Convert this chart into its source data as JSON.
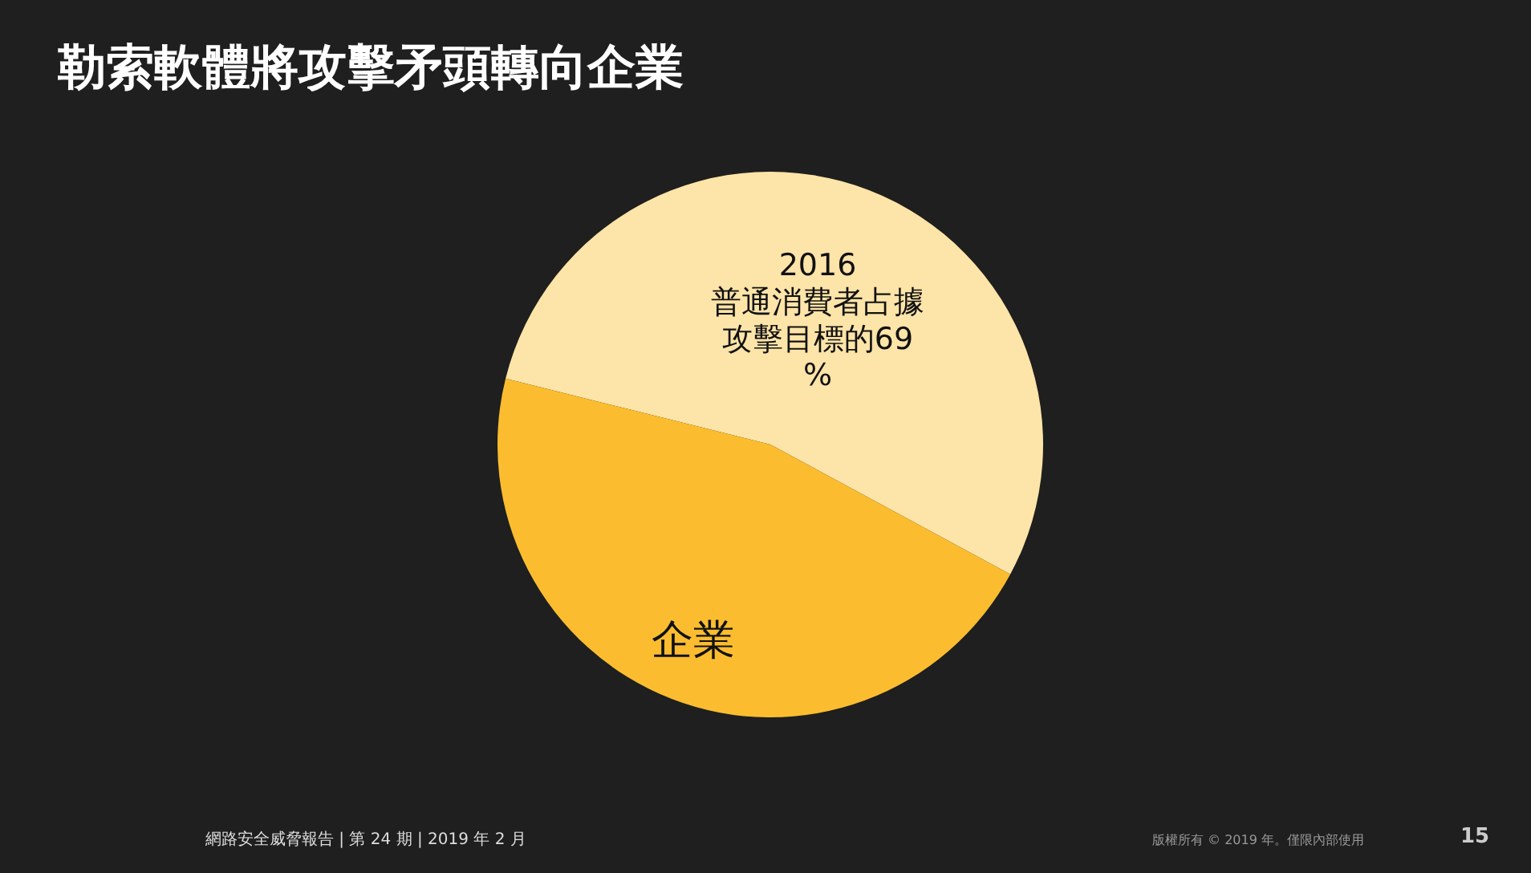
{
  "chart_data": {
    "type": "pie",
    "title": "勒索軟體將攻擊矛頭轉向企業",
    "categories": [
      "2016\n普通消費者占據攻擊目標的69%",
      "企業"
    ],
    "values": [
      54,
      46
    ],
    "colors": [
      "#fde4a8",
      "#fbbd2f"
    ],
    "legend": false,
    "annotations": [
      "網路安全威脅報告 | 第 24 期 | 2019 年 2 月",
      "版權所有 © 2019 年。僅限內部使用",
      "15"
    ]
  }
}
